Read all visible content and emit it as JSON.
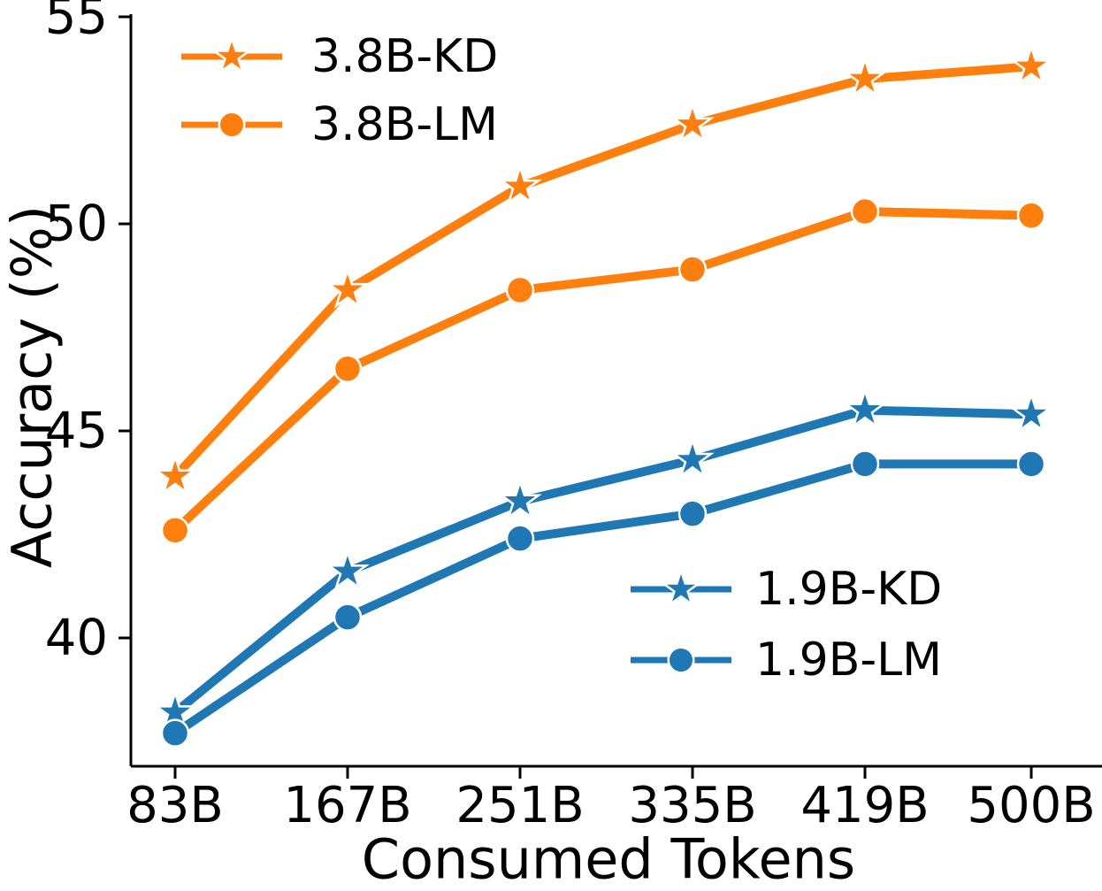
{
  "chart_data": {
    "type": "line",
    "title": "",
    "xlabel": "Consumed Tokens",
    "ylabel": "Accuracy (%)",
    "categories": [
      "83B",
      "167B",
      "251B",
      "335B",
      "419B",
      "500B"
    ],
    "x_values": [
      83,
      167,
      251,
      335,
      419,
      500
    ],
    "yticks": [
      55,
      50,
      45,
      40
    ],
    "ylim": [
      36.9,
      55
    ],
    "xlim": [
      61,
      534
    ],
    "grid": false,
    "colors": {
      "orange": "#ff7f0e",
      "blue": "#1f77b4",
      "axis": "#000000",
      "background": "#ffffff"
    },
    "series": [
      {
        "name": "3.8B-KD",
        "color": "#ff7f0e",
        "marker": "star",
        "values": [
          43.9,
          48.4,
          50.9,
          52.4,
          53.5,
          53.8
        ]
      },
      {
        "name": "3.8B-LM",
        "color": "#ff7f0e",
        "marker": "circle",
        "values": [
          42.6,
          46.5,
          48.4,
          48.9,
          50.3,
          50.2
        ]
      },
      {
        "name": "1.9B-KD",
        "color": "#1f77b4",
        "marker": "star",
        "values": [
          38.2,
          41.6,
          43.3,
          44.3,
          45.5,
          45.4
        ]
      },
      {
        "name": "1.9B-LM",
        "color": "#1f77b4",
        "marker": "circle",
        "values": [
          37.7,
          40.5,
          42.4,
          43.0,
          44.2,
          44.2
        ]
      }
    ],
    "legends": [
      {
        "position": "upper-left",
        "entries": [
          "3.8B-KD",
          "3.8B-LM"
        ]
      },
      {
        "position": "lower-right",
        "entries": [
          "1.9B-KD",
          "1.9B-LM"
        ]
      }
    ]
  }
}
